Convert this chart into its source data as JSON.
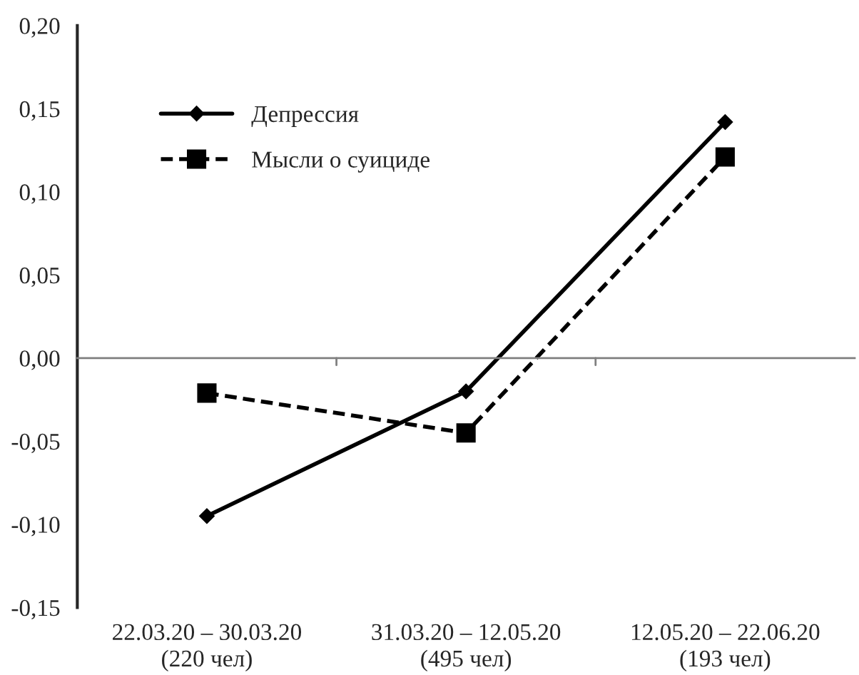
{
  "chart_data": {
    "type": "line",
    "categories": [
      "22.03.20 – 30.03.20\n(220 чел)",
      "31.03.20 – 12.05.20\n(495 чел)",
      "12.05.20 – 22.06.20\n(193 чел)"
    ],
    "series": [
      {
        "name": "Депрессия",
        "color": "#000000",
        "values": [
          -0.095,
          -0.02,
          0.142
        ],
        "marker": "diamond",
        "line_style": "solid"
      },
      {
        "name": "Мысли о суициде",
        "color": "#000000",
        "values": [
          -0.021,
          -0.045,
          0.121
        ],
        "marker": "square",
        "line_style": "dashed"
      }
    ],
    "ylim": [
      -0.15,
      0.2
    ],
    "yticks": [
      {
        "value": -0.15,
        "label": "-0,15"
      },
      {
        "value": -0.1,
        "label": "-0,10"
      },
      {
        "value": -0.05,
        "label": "-0,05"
      },
      {
        "value": 0,
        "label": "0,00"
      },
      {
        "value": 0.05,
        "label": "0,05"
      },
      {
        "value": 0.1,
        "label": "0,10"
      },
      {
        "value": 0.15,
        "label": "0,15"
      },
      {
        "value": 0.2,
        "label": "0,20"
      }
    ],
    "legend": "top left"
  }
}
